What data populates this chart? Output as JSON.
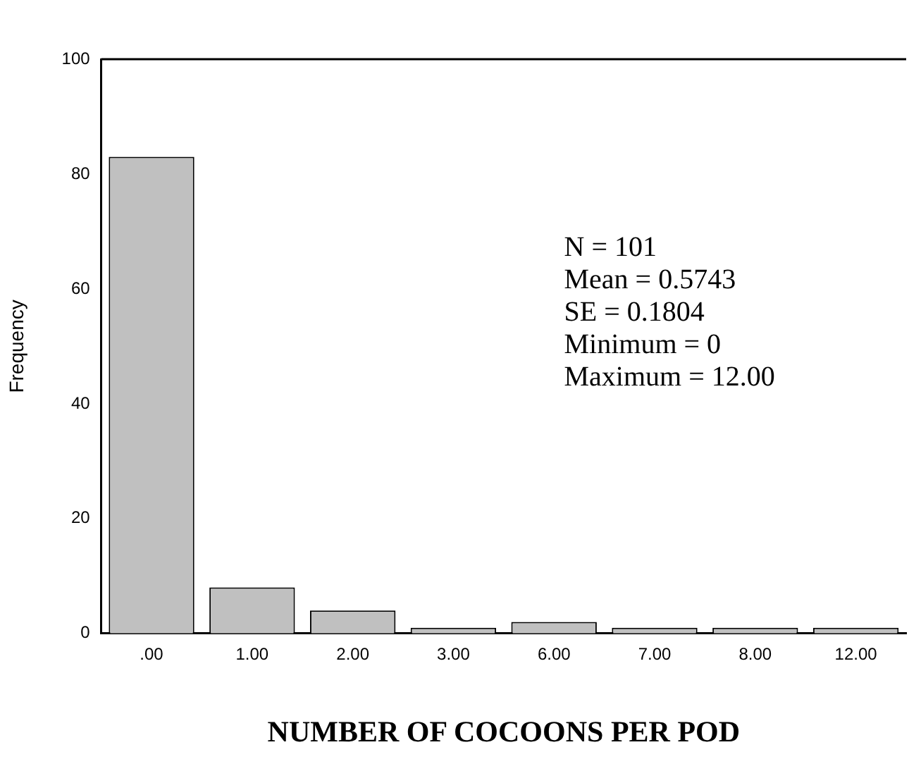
{
  "chart_data": {
    "type": "bar",
    "xlabel": "NUMBER OF COCOONS PER POD",
    "ylabel": "Frequency",
    "categories": [
      ".00",
      "1.00",
      "2.00",
      "3.00",
      "6.00",
      "7.00",
      "8.00",
      "12.00"
    ],
    "values": [
      83,
      8,
      4,
      1,
      2,
      1,
      1,
      1
    ],
    "color": "#c0c0c0",
    "ylim": [
      0,
      100
    ],
    "yticks": [
      0,
      20,
      40,
      60,
      80,
      100
    ],
    "grid": false,
    "legend": false,
    "annotations": [
      "N = 101",
      "Mean = 0.5743",
      "SE = 0.1804",
      "Minimum = 0",
      "Maximum = 12.00"
    ]
  }
}
